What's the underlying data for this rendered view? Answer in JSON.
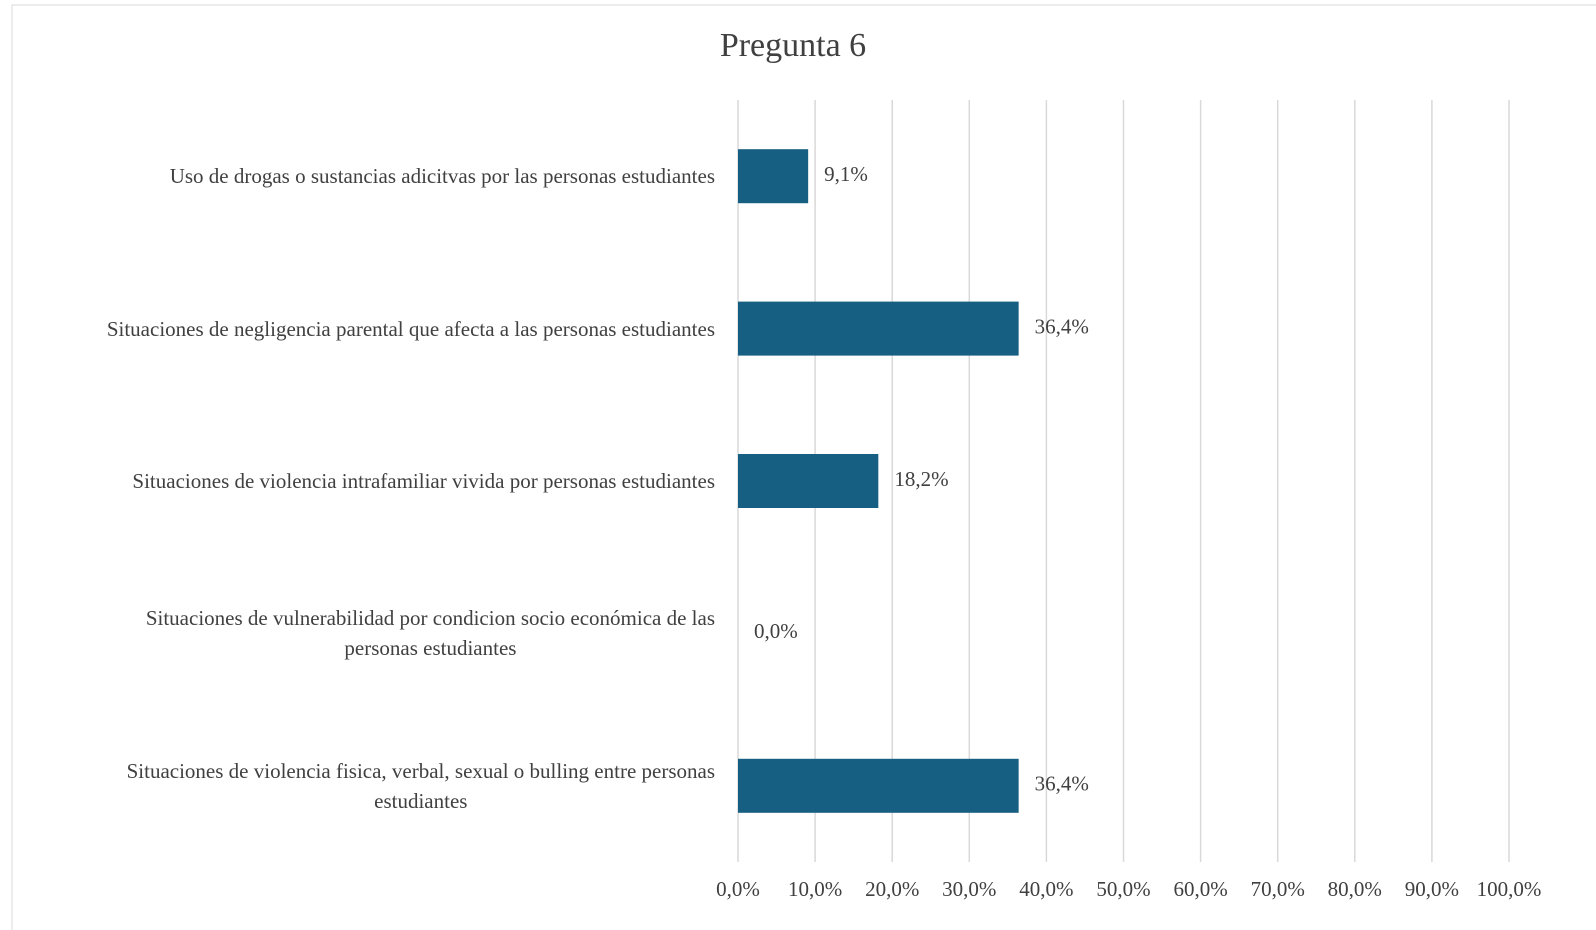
{
  "chart_data": {
    "type": "barh",
    "title": "Pregunta 6",
    "categories": [
      "Uso de drogas o sustancias adicitvas por las personas estudiantes",
      "Situaciones de negligencia parental que afecta a las personas estudiantes",
      "Situaciones de violencia intrafamiliar  vivida por personas estudiantes",
      "Situaciones de vulnerabilidad  por condicion socio económica de las\npersonas  estudiantes",
      "Situaciones de violencia fisica, verbal, sexual o bulling entre personas\nestudiantes"
    ],
    "values": [
      9.1,
      36.4,
      18.2,
      0,
      36.4
    ],
    "value_labels": [
      "9,1%",
      "36,4%",
      "18,2%",
      "0,0%",
      "36,4%"
    ],
    "color": "#165f82",
    "xlim": [
      0,
      100
    ],
    "xticks": [
      {
        "value": 0,
        "label": "0,0%"
      },
      {
        "value": 10,
        "label": "10,0%"
      },
      {
        "value": 20,
        "label": "20,0%"
      },
      {
        "value": 30,
        "label": "30,0%"
      },
      {
        "value": 40,
        "label": "40,0%"
      },
      {
        "value": 50,
        "label": "50,0%"
      },
      {
        "value": 60,
        "label": "60,0%"
      },
      {
        "value": 70,
        "label": "70,0%"
      },
      {
        "value": 80,
        "label": "80,0%"
      },
      {
        "value": 90,
        "label": "90,0%"
      },
      {
        "value": 100,
        "label": "100,0%"
      }
    ],
    "grid": true
  }
}
